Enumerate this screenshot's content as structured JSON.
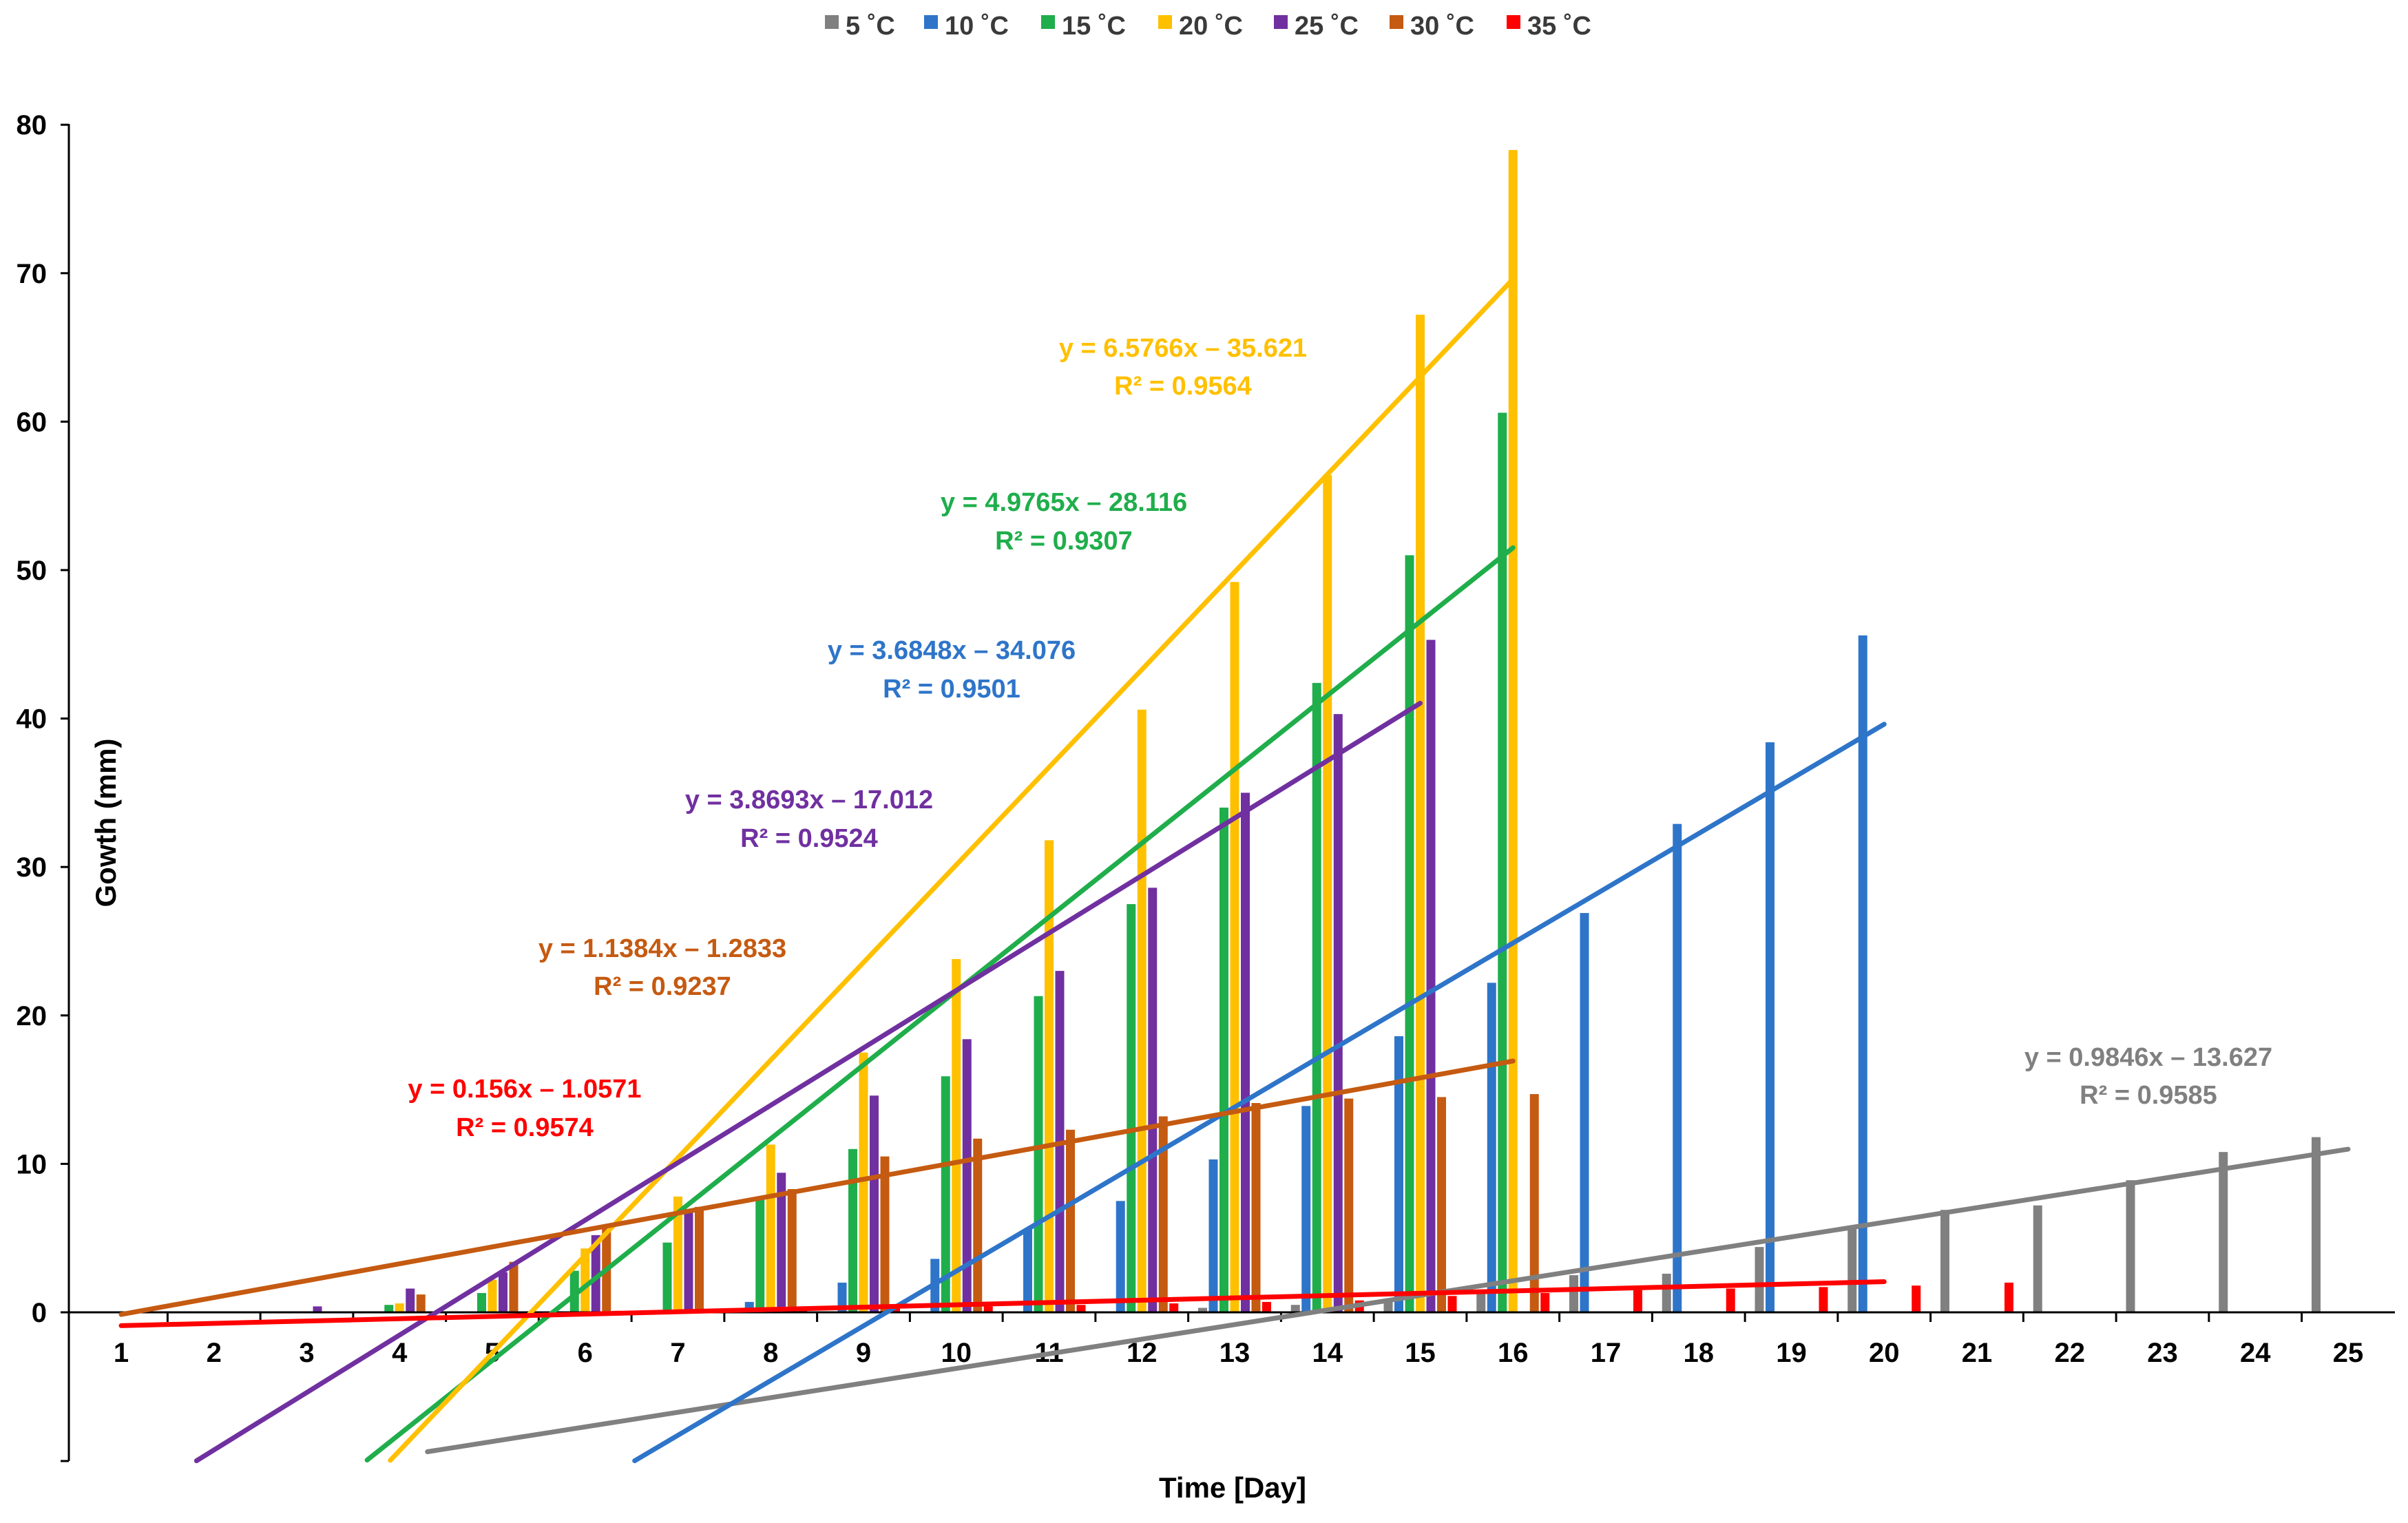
{
  "chart_data": {
    "type": "bar",
    "title": "",
    "xlabel": "Time [Day]",
    "ylabel": "Gowth (mm)",
    "categories": [
      "1",
      "2",
      "3",
      "4",
      "5",
      "6",
      "7",
      "8",
      "9",
      "10",
      "11",
      "12",
      "13",
      "14",
      "15",
      "16",
      "17",
      "18",
      "19",
      "20",
      "21",
      "22",
      "23",
      "24",
      "25"
    ],
    "ylim": [
      -10,
      80
    ],
    "yticks": [
      "0",
      "10",
      "20",
      "30",
      "40",
      "50",
      "60",
      "70",
      "80"
    ],
    "grid": false,
    "legend_position": "top",
    "series": [
      {
        "name": "5 °C",
        "legend_label": "5 ˚C",
        "color": "#808080",
        "values": [
          0,
          0,
          0,
          0,
          0,
          0,
          0,
          0,
          0,
          0,
          0,
          0,
          0.3,
          0.5,
          0.8,
          1.3,
          2.5,
          2.6,
          4.4,
          5.8,
          6.9,
          7.2,
          8.9,
          10.8,
          11.8
        ],
        "trendline": {
          "slope": 0.9846,
          "intercept": -13.627,
          "x_range": [
            4.3,
            25
          ],
          "equation": "y = 0.9846x – 13.627",
          "r2": "R² = 0.9585"
        }
      },
      {
        "name": "10 °C",
        "legend_label": "10 ˚C",
        "color": "#2E75C9",
        "values": [
          0,
          0,
          0,
          0,
          0,
          0,
          0,
          0.7,
          2.0,
          3.6,
          5.6,
          7.5,
          10.3,
          13.9,
          18.6,
          22.2,
          26.9,
          32.9,
          38.4,
          45.6,
          null,
          null,
          null,
          null,
          null
        ],
        "trendline": {
          "slope": 3.6848,
          "intercept": -34.076,
          "x_range": [
            6.5,
            20
          ],
          "equation": "y = 3.6848x – 34.076",
          "r2": "R² = 0.9501"
        }
      },
      {
        "name": "15 °C",
        "legend_label": "15 ˚C",
        "color": "#1FAE4B",
        "values": [
          0,
          0,
          0,
          0.5,
          1.3,
          2.8,
          4.7,
          7.7,
          11.0,
          15.9,
          21.3,
          27.5,
          34.0,
          42.4,
          51.0,
          60.6,
          null,
          null,
          null,
          null,
          null,
          null,
          null,
          null,
          null
        ],
        "trendline": {
          "slope": 4.9765,
          "intercept": -28.116,
          "x_range": [
            3.65,
            16
          ],
          "equation": "y = 4.9765x – 28.116",
          "r2": "R² = 0.9307"
        }
      },
      {
        "name": "20 °C",
        "legend_label": "20 ˚C",
        "color": "#FFC000",
        "values": [
          0,
          0,
          0,
          0.6,
          2.2,
          4.3,
          7.8,
          11.3,
          17.5,
          23.8,
          31.8,
          40.6,
          49.2,
          56.4,
          67.2,
          78.3,
          null,
          null,
          null,
          null,
          null,
          null,
          null,
          null,
          null
        ],
        "trendline": {
          "slope": 6.5766,
          "intercept": -35.621,
          "x_range": [
            3.9,
            16
          ],
          "equation": "y = 6.5766x – 35.621",
          "r2": "R² = 0.9564"
        }
      },
      {
        "name": "25 °C",
        "legend_label": "25 ˚C",
        "color": "#7030A0",
        "values": [
          0,
          0,
          0.4,
          1.6,
          2.7,
          5.2,
          6.8,
          9.4,
          14.6,
          18.4,
          23.0,
          28.6,
          35.0,
          40.3,
          45.3,
          null,
          null,
          null,
          null,
          null,
          null,
          null,
          null,
          null,
          null
        ],
        "trendline": {
          "slope": 3.8693,
          "intercept": -17.012,
          "x_range": [
            1.8,
            15
          ],
          "equation": "y = 3.8693x – 17.012",
          "r2": "R² = 0.9524"
        }
      },
      {
        "name": "30 °C",
        "legend_label": "30 ˚C",
        "color": "#C55A11",
        "values": [
          0,
          0,
          0,
          1.2,
          3.4,
          5.8,
          7.1,
          8.3,
          10.5,
          11.7,
          12.3,
          13.2,
          14.1,
          14.4,
          14.5,
          14.7,
          null,
          null,
          null,
          null,
          null,
          null,
          null,
          null,
          null
        ],
        "trendline": {
          "slope": 1.1384,
          "intercept": -1.2833,
          "x_range": [
            1,
            16
          ],
          "equation": "y = 1.1384x – 1.2833",
          "r2": "R² = 0.9237"
        }
      },
      {
        "name": "35 °C",
        "legend_label": "35 ˚C",
        "color": "#FF0000",
        "values": [
          0,
          0,
          0,
          0,
          0,
          0.1,
          0.2,
          0.2,
          0.3,
          0.4,
          0.5,
          0.6,
          0.7,
          0.8,
          1.1,
          1.3,
          1.5,
          1.6,
          1.7,
          1.8,
          2.0,
          null,
          null,
          null,
          null
        ],
        "trendline": {
          "slope": 0.156,
          "intercept": -1.0571,
          "x_range": [
            1,
            20
          ],
          "equation": "y = 0.156x – 1.0571",
          "r2": "R² = 0.9574"
        }
      }
    ]
  }
}
